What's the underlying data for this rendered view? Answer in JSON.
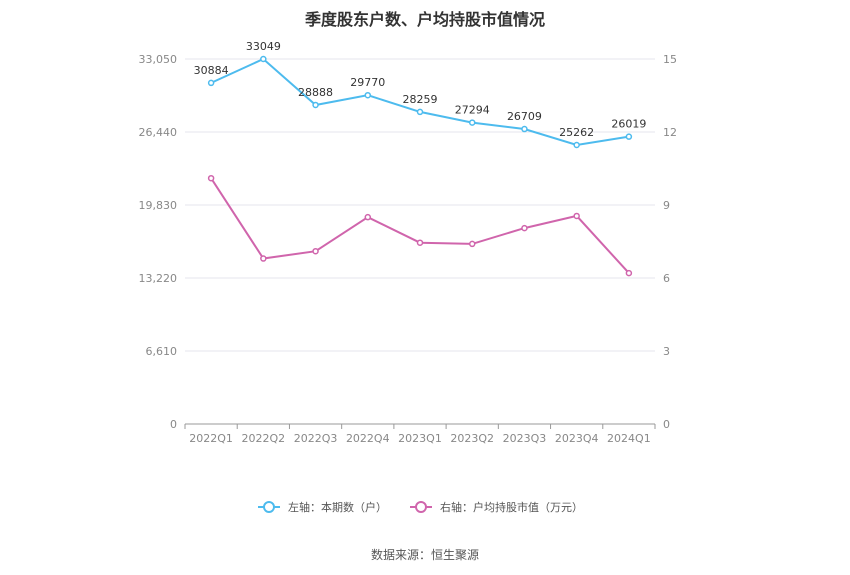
{
  "title": "季度股东户数、户均持股市值情况",
  "source": "数据来源：恒生聚源",
  "colors": {
    "left_series": "#4dbbee",
    "right_series": "#d065ac",
    "grid": "#e6e6ee",
    "axis": "#999999"
  },
  "chart_data": {
    "type": "line",
    "categories": [
      "2022Q1",
      "2022Q2",
      "2022Q3",
      "2022Q4",
      "2023Q1",
      "2023Q2",
      "2023Q3",
      "2023Q4",
      "2024Q1"
    ],
    "left_axis": {
      "ticks": [
        "0",
        "6,610",
        "13,220",
        "19,830",
        "26,440",
        "33,050"
      ],
      "ylim": [
        0,
        33050
      ]
    },
    "right_axis": {
      "ticks": [
        "0",
        "3",
        "6",
        "9",
        "12",
        "15"
      ],
      "ylim": [
        0,
        15
      ]
    },
    "series": [
      {
        "name": "左轴：本期数（户）",
        "axis": "left",
        "values": [
          30884,
          33049,
          28888,
          29770,
          28259,
          27294,
          26709,
          25262,
          26019
        ],
        "labels": [
          "30884",
          "33049",
          "28888",
          "29770",
          "28259",
          "27294",
          "26709",
          "25262",
          "26019"
        ]
      },
      {
        "name": "右轴：户均持股市值（万元）",
        "axis": "right",
        "values": [
          10.1,
          6.8,
          7.1,
          8.5,
          7.45,
          7.4,
          8.05,
          8.55,
          6.2
        ]
      }
    ],
    "grid": true,
    "legend": "bottom"
  }
}
